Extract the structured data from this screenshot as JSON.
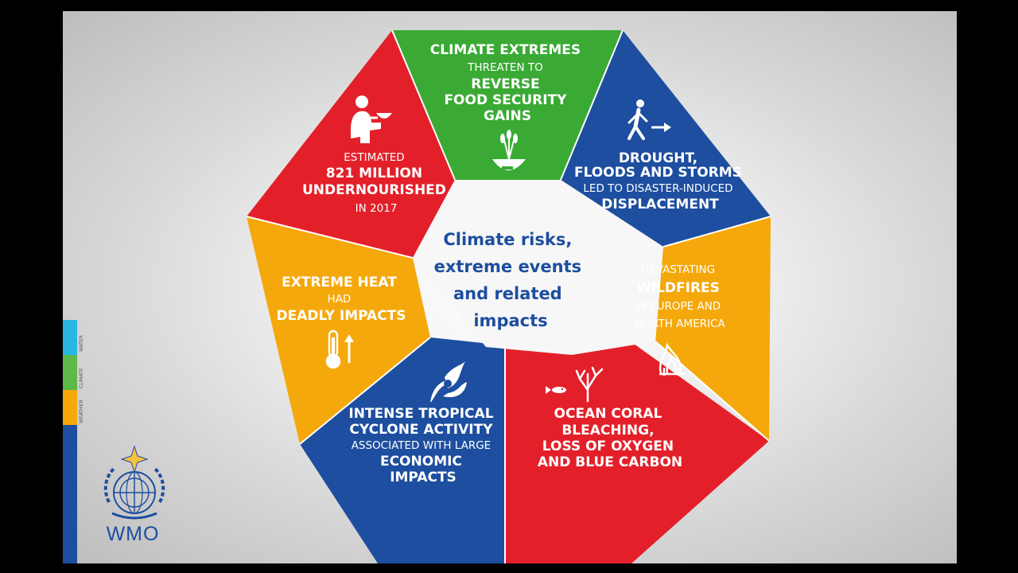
{
  "colors": {
    "green": "#3aaa35",
    "blue": "#1d4e9f",
    "red": "#e3202a",
    "yellow": "#f5a80b",
    "cyan": "#29b6e4",
    "text_blue": "#1d4e9f"
  },
  "center": {
    "lines": [
      "Climate risks,",
      "extreme events",
      "and related",
      "impacts"
    ]
  },
  "segments": [
    {
      "id": "food-security",
      "icon": "bowl-wheat-icon",
      "lines": [
        {
          "text": "CLIMATE EXTREMES",
          "style": "b"
        },
        {
          "text": "THREATEN TO",
          "style": "n"
        },
        {
          "text": "REVERSE",
          "style": "b"
        },
        {
          "text": "FOOD SECURITY",
          "style": "b"
        },
        {
          "text": "GAINS",
          "style": "b"
        }
      ]
    },
    {
      "id": "displacement",
      "icon": "walking-person-arrow-icon",
      "lines": [
        {
          "text": "DROUGHT,",
          "style": "b"
        },
        {
          "text": "FLOODS AND STORMS",
          "style": "b"
        },
        {
          "text": "LED TO DISASTER-INDUCED",
          "style": "n"
        },
        {
          "text": "DISPLACEMENT",
          "style": "b"
        }
      ]
    },
    {
      "id": "wildfires",
      "icon": "fire-icon",
      "lines": [
        {
          "text": "DEVASTATING",
          "style": "n"
        },
        {
          "text": "WILDFIRES",
          "style": "b"
        },
        {
          "text": "IN EUROPE AND",
          "style": "n"
        },
        {
          "text": "NORTH AMERICA",
          "style": "n"
        }
      ]
    },
    {
      "id": "ocean-coral",
      "icon": "coral-fish-icon",
      "lines": [
        {
          "text": "OCEAN CORAL",
          "style": "b"
        },
        {
          "text": "BLEACHING,",
          "style": "b"
        },
        {
          "text": "LOSS OF OXYGEN",
          "style": "b"
        },
        {
          "text": "AND BLUE CARBON",
          "style": "b"
        }
      ]
    },
    {
      "id": "tropical-cyclone",
      "icon": "cyclone-icon",
      "lines": [
        {
          "text": "INTENSE TROPICAL",
          "style": "b"
        },
        {
          "text": "CYCLONE ACTIVITY",
          "style": "b"
        },
        {
          "text": "ASSOCIATED WITH LARGE",
          "style": "n"
        },
        {
          "text": "ECONOMIC",
          "style": "b"
        },
        {
          "text": "IMPACTS",
          "style": "b"
        }
      ]
    },
    {
      "id": "extreme-heat",
      "icon": "thermometer-up-icon",
      "lines": [
        {
          "text": "EXTREME HEAT",
          "style": "b"
        },
        {
          "text": "HAD",
          "style": "n"
        },
        {
          "text": "DEADLY IMPACTS",
          "style": "b"
        }
      ]
    },
    {
      "id": "undernourished",
      "icon": "hungry-person-bowl-icon",
      "lines": [
        {
          "text": "ESTIMATED",
          "style": "n"
        },
        {
          "text": "821 MILLION",
          "style": "b"
        },
        {
          "text": "UNDERNOURISHED",
          "style": "b"
        },
        {
          "text": "IN 2017",
          "style": "n"
        }
      ]
    }
  ],
  "side_labels": [
    "WEATHER",
    "CLIMATE",
    "WATER"
  ],
  "logo": {
    "icon": "wmo-emblem-icon",
    "text": "WMO"
  }
}
